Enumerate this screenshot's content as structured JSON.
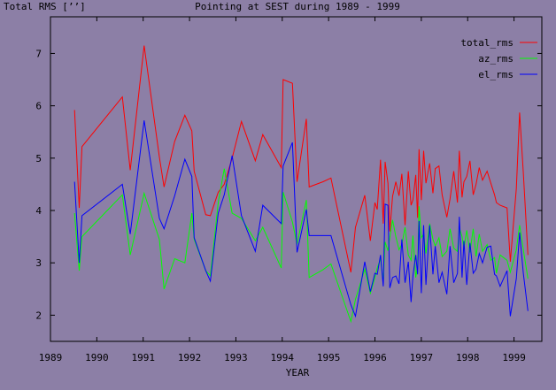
{
  "window": {
    "background": "#8c7fa6"
  },
  "chart_data": {
    "type": "line",
    "title": "Pointing at SEST during 1989 - 1999",
    "ylabel": "Total RMS [’’]",
    "xlabel": "YEAR",
    "xlim": [
      1989,
      1999.6
    ],
    "ylim": [
      1.5,
      7.7
    ],
    "xticks": [
      1989,
      1990,
      1991,
      1992,
      1993,
      1994,
      1995,
      1996,
      1997,
      1998,
      1999
    ],
    "yticks": [
      2,
      3,
      4,
      5,
      6,
      7
    ],
    "grid": false,
    "legend_position": "top-right",
    "series": [
      {
        "name": "total_rms",
        "color": "#ff0000",
        "x": [
          1989.52,
          1989.62,
          1989.68,
          1990.55,
          1990.72,
          1991.02,
          1991.35,
          1991.45,
          1991.68,
          1991.9,
          1992.05,
          1992.1,
          1992.35,
          1992.45,
          1992.62,
          1992.75,
          1992.92,
          1993.12,
          1993.42,
          1993.58,
          1993.98,
          1994.02,
          1994.22,
          1994.32,
          1994.52,
          1994.58,
          1994.88,
          1995.05,
          1995.48,
          1995.58,
          1995.78,
          1995.9,
          1996.0,
          1996.05,
          1996.12,
          1996.18,
          1996.22,
          1996.28,
          1996.32,
          1996.38,
          1996.45,
          1996.52,
          1996.58,
          1996.65,
          1996.72,
          1996.78,
          1996.82,
          1996.88,
          1996.92,
          1996.95,
          1997.0,
          1997.05,
          1997.1,
          1997.18,
          1997.25,
          1997.3,
          1997.38,
          1997.45,
          1997.55,
          1997.62,
          1997.7,
          1997.78,
          1997.82,
          1997.88,
          1997.92,
          1997.98,
          1998.05,
          1998.12,
          1998.18,
          1998.25,
          1998.32,
          1998.42,
          1998.5,
          1998.58,
          1998.62,
          1998.7,
          1998.85,
          1998.92,
          1999.05,
          1999.12,
          1999.2,
          1999.3
        ],
        "values": [
          5.92,
          4.05,
          5.22,
          6.17,
          4.77,
          7.15,
          5.02,
          4.45,
          5.32,
          5.82,
          5.52,
          4.75,
          3.92,
          3.9,
          4.35,
          4.5,
          5.0,
          5.7,
          4.95,
          5.45,
          4.82,
          6.5,
          6.43,
          4.55,
          5.75,
          4.45,
          4.55,
          4.62,
          2.82,
          3.68,
          4.29,
          3.42,
          4.15,
          4.02,
          4.97,
          3.75,
          4.93,
          4.52,
          3.6,
          4.27,
          4.55,
          4.28,
          4.7,
          3.72,
          4.75,
          4.1,
          4.2,
          4.68,
          3.86,
          5.17,
          4.2,
          5.14,
          4.52,
          4.9,
          4.33,
          4.8,
          4.85,
          4.3,
          3.87,
          4.22,
          4.75,
          4.15,
          5.14,
          4.25,
          4.55,
          4.65,
          4.95,
          4.3,
          4.5,
          4.82,
          4.58,
          4.75,
          4.52,
          4.3,
          4.15,
          4.1,
          4.05,
          3.02,
          4.42,
          5.87,
          4.72,
          3.15
        ]
      },
      {
        "name": "az_rms",
        "color": "#00ff00",
        "x": [
          1989.52,
          1989.62,
          1989.68,
          1990.55,
          1990.72,
          1991.02,
          1991.35,
          1991.45,
          1991.68,
          1991.9,
          1992.05,
          1992.1,
          1992.35,
          1992.45,
          1992.62,
          1992.75,
          1992.92,
          1993.12,
          1993.42,
          1993.58,
          1993.98,
          1994.02,
          1994.22,
          1994.32,
          1994.52,
          1994.58,
          1994.88,
          1995.05,
          1995.48,
          1995.58,
          1995.78,
          1995.9,
          1996.0,
          1996.05,
          1996.12,
          1996.18,
          1996.22,
          1996.28,
          1996.32,
          1996.38,
          1996.45,
          1996.52,
          1996.58,
          1996.65,
          1996.72,
          1996.78,
          1996.82,
          1996.88,
          1996.92,
          1996.95,
          1997.0,
          1997.05,
          1997.1,
          1997.18,
          1997.25,
          1997.3,
          1997.38,
          1997.45,
          1997.55,
          1997.62,
          1997.7,
          1997.78,
          1997.82,
          1997.88,
          1997.92,
          1997.98,
          1998.05,
          1998.12,
          1998.18,
          1998.25,
          1998.32,
          1998.42,
          1998.5,
          1998.58,
          1998.62,
          1998.7,
          1998.85,
          1998.92,
          1999.05,
          1999.12,
          1999.2,
          1999.3
        ],
        "values": [
          3.95,
          2.85,
          3.5,
          4.3,
          3.15,
          4.33,
          3.45,
          2.5,
          3.08,
          3.0,
          3.95,
          3.45,
          2.85,
          2.75,
          4.15,
          4.8,
          3.95,
          3.85,
          3.42,
          3.68,
          2.9,
          4.35,
          3.78,
          3.35,
          4.2,
          2.72,
          2.87,
          2.98,
          1.88,
          2.3,
          2.88,
          2.42,
          2.72,
          2.9,
          3.08,
          2.62,
          3.4,
          3.23,
          3.48,
          3.82,
          3.5,
          3.25,
          3.35,
          3.68,
          3.15,
          3.05,
          3.52,
          2.72,
          2.95,
          4.08,
          3.48,
          3.55,
          3.18,
          3.75,
          3.45,
          3.32,
          3.48,
          3.12,
          3.22,
          3.65,
          3.28,
          3.22,
          3.68,
          3.5,
          3.28,
          3.62,
          3.2,
          3.65,
          3.12,
          3.55,
          3.22,
          3.35,
          3.05,
          3.1,
          2.8,
          3.15,
          3.05,
          2.82,
          3.25,
          3.72,
          3.25,
          2.7
        ]
      },
      {
        "name": "el_rms",
        "color": "#0000ff",
        "x": [
          1989.52,
          1989.62,
          1989.68,
          1990.55,
          1990.72,
          1991.02,
          1991.35,
          1991.45,
          1991.68,
          1991.9,
          1992.05,
          1992.1,
          1992.35,
          1992.45,
          1992.62,
          1992.75,
          1992.92,
          1993.12,
          1993.42,
          1993.58,
          1993.98,
          1994.02,
          1994.22,
          1994.32,
          1994.52,
          1994.58,
          1994.88,
          1995.05,
          1995.48,
          1995.58,
          1995.78,
          1995.9,
          1996.0,
          1996.05,
          1996.12,
          1996.18,
          1996.22,
          1996.28,
          1996.32,
          1996.38,
          1996.45,
          1996.52,
          1996.58,
          1996.65,
          1996.72,
          1996.78,
          1996.82,
          1996.88,
          1996.92,
          1996.95,
          1997.0,
          1997.05,
          1997.1,
          1997.18,
          1997.25,
          1997.3,
          1997.38,
          1997.45,
          1997.55,
          1997.62,
          1997.7,
          1997.78,
          1997.82,
          1997.88,
          1997.92,
          1997.98,
          1998.05,
          1998.12,
          1998.18,
          1998.25,
          1998.32,
          1998.42,
          1998.5,
          1998.58,
          1998.62,
          1998.7,
          1998.85,
          1998.92,
          1999.05,
          1999.12,
          1999.2,
          1999.3
        ],
        "values": [
          4.55,
          3.0,
          3.9,
          4.5,
          3.55,
          5.72,
          3.85,
          3.65,
          4.28,
          4.98,
          4.65,
          3.48,
          2.85,
          2.65,
          3.95,
          4.3,
          5.05,
          3.9,
          3.22,
          4.1,
          3.75,
          4.85,
          5.3,
          3.2,
          4.02,
          3.52,
          3.52,
          3.52,
          2.2,
          1.98,
          3.02,
          2.45,
          2.8,
          2.78,
          3.15,
          2.55,
          4.12,
          4.1,
          2.52,
          2.72,
          2.75,
          2.6,
          3.45,
          2.62,
          3.02,
          2.25,
          2.75,
          3.15,
          2.78,
          3.8,
          2.42,
          3.72,
          2.58,
          3.72,
          2.78,
          3.32,
          2.62,
          2.82,
          2.4,
          3.32,
          2.62,
          2.8,
          3.88,
          2.72,
          3.42,
          2.58,
          3.38,
          2.8,
          2.88,
          3.18,
          3.0,
          3.3,
          3.32,
          2.78,
          2.75,
          2.55,
          2.85,
          1.98,
          2.7,
          3.58,
          2.8,
          2.08
        ]
      }
    ]
  }
}
